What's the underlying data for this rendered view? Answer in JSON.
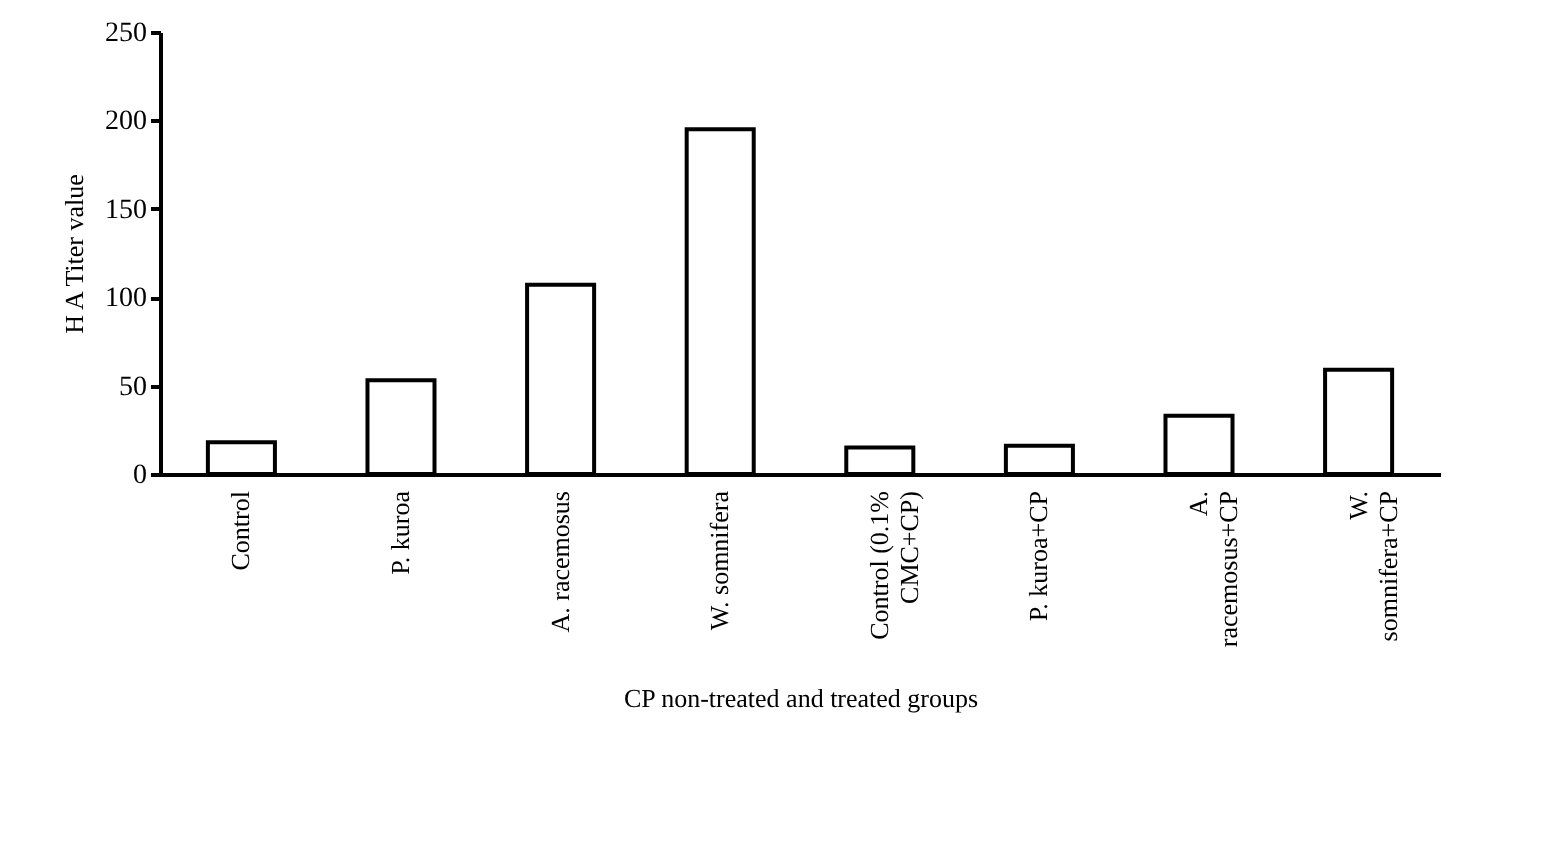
{
  "chart_data": {
    "type": "bar",
    "xlabel": "CP non-treated and treated groups",
    "ylabel": "H A Titer value",
    "categories": [
      "Control",
      "P. kuroa",
      "A. racemosus",
      "W. somnifera",
      "Control (0.1% CMC+CP)",
      "P. kuroa+CP",
      "A. racemosus+CP",
      "W. somnifera+CP"
    ],
    "values": [
      18,
      53,
      107,
      195,
      15,
      16,
      33,
      59
    ],
    "color": "#ffffff",
    "ylim": [
      0,
      250
    ],
    "yticks": [
      0,
      50,
      100,
      150,
      200,
      250
    ],
    "grid": false
  }
}
